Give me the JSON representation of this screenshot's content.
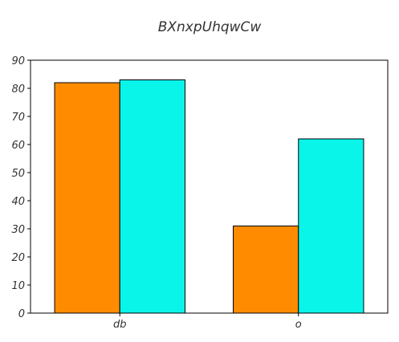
{
  "chart_data": {
    "type": "bar",
    "title": "BXnxpUhqwCw",
    "xlabel": "",
    "ylabel": "",
    "categories": [
      "db",
      "o"
    ],
    "series": [
      {
        "values": [
          82,
          31
        ],
        "color": "#ff8c00"
      },
      {
        "values": [
          83,
          62
        ],
        "color": "#0af5e9"
      }
    ],
    "ylim": [
      0,
      90
    ],
    "yticks": [
      0,
      10,
      20,
      30,
      40,
      50,
      60,
      70,
      80,
      90
    ],
    "grid": false,
    "legend": "none"
  }
}
